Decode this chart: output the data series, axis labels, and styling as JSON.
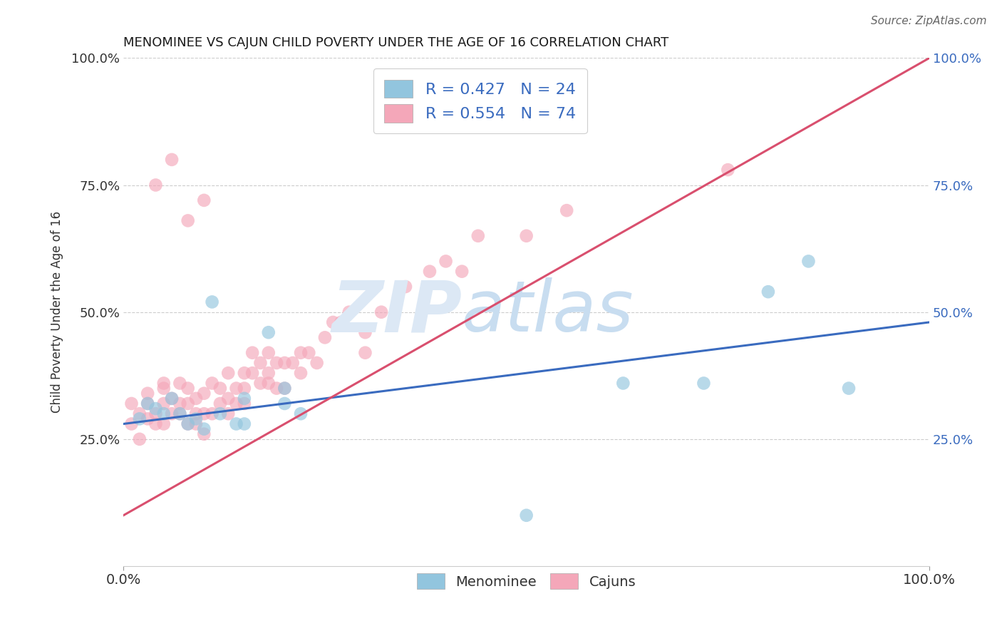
{
  "title": "MENOMINEE VS CAJUN CHILD POVERTY UNDER THE AGE OF 16 CORRELATION CHART",
  "source_text": "Source: ZipAtlas.com",
  "ylabel": "Child Poverty Under the Age of 16",
  "xlim": [
    0,
    1.0
  ],
  "ylim": [
    0,
    1.0
  ],
  "legend_label1": "Menominee",
  "legend_label2": "Cajuns",
  "R1": "0.427",
  "N1": "24",
  "R2": "0.554",
  "N2": "74",
  "color1": "#92c5de",
  "color2": "#f4a7b9",
  "line_color1": "#3a6bbf",
  "line_color2": "#d94f6e",
  "background_color": "#ffffff",
  "grid_color": "#cccccc",
  "menominee_x": [
    0.02,
    0.03,
    0.04,
    0.05,
    0.06,
    0.07,
    0.08,
    0.09,
    0.1,
    0.11,
    0.12,
    0.14,
    0.15,
    0.18,
    0.2,
    0.22,
    0.15,
    0.2,
    0.5,
    0.62,
    0.72,
    0.8,
    0.85,
    0.9
  ],
  "menominee_y": [
    0.29,
    0.32,
    0.31,
    0.3,
    0.33,
    0.3,
    0.28,
    0.29,
    0.27,
    0.52,
    0.3,
    0.28,
    0.33,
    0.46,
    0.35,
    0.3,
    0.28,
    0.32,
    0.1,
    0.36,
    0.36,
    0.54,
    0.6,
    0.35
  ],
  "cajun_x": [
    0.01,
    0.01,
    0.02,
    0.02,
    0.03,
    0.03,
    0.03,
    0.04,
    0.04,
    0.05,
    0.05,
    0.05,
    0.05,
    0.06,
    0.06,
    0.07,
    0.07,
    0.07,
    0.08,
    0.08,
    0.08,
    0.09,
    0.09,
    0.09,
    0.1,
    0.1,
    0.1,
    0.11,
    0.11,
    0.12,
    0.12,
    0.13,
    0.13,
    0.13,
    0.14,
    0.14,
    0.15,
    0.15,
    0.15,
    0.16,
    0.16,
    0.17,
    0.17,
    0.18,
    0.18,
    0.18,
    0.19,
    0.19,
    0.2,
    0.2,
    0.21,
    0.22,
    0.22,
    0.23,
    0.24,
    0.25,
    0.26,
    0.27,
    0.28,
    0.3,
    0.3,
    0.32,
    0.35,
    0.38,
    0.4,
    0.42,
    0.44,
    0.5,
    0.55,
    0.75,
    0.08,
    0.1,
    0.04,
    0.06
  ],
  "cajun_y": [
    0.28,
    0.32,
    0.25,
    0.3,
    0.29,
    0.32,
    0.34,
    0.28,
    0.3,
    0.32,
    0.35,
    0.28,
    0.36,
    0.3,
    0.33,
    0.3,
    0.32,
    0.36,
    0.32,
    0.35,
    0.28,
    0.3,
    0.33,
    0.28,
    0.3,
    0.34,
    0.26,
    0.36,
    0.3,
    0.32,
    0.35,
    0.3,
    0.33,
    0.38,
    0.35,
    0.32,
    0.35,
    0.38,
    0.32,
    0.38,
    0.42,
    0.36,
    0.4,
    0.38,
    0.36,
    0.42,
    0.4,
    0.35,
    0.4,
    0.35,
    0.4,
    0.42,
    0.38,
    0.42,
    0.4,
    0.45,
    0.48,
    0.48,
    0.5,
    0.46,
    0.42,
    0.5,
    0.55,
    0.58,
    0.6,
    0.58,
    0.65,
    0.65,
    0.7,
    0.78,
    0.68,
    0.72,
    0.75,
    0.8
  ]
}
